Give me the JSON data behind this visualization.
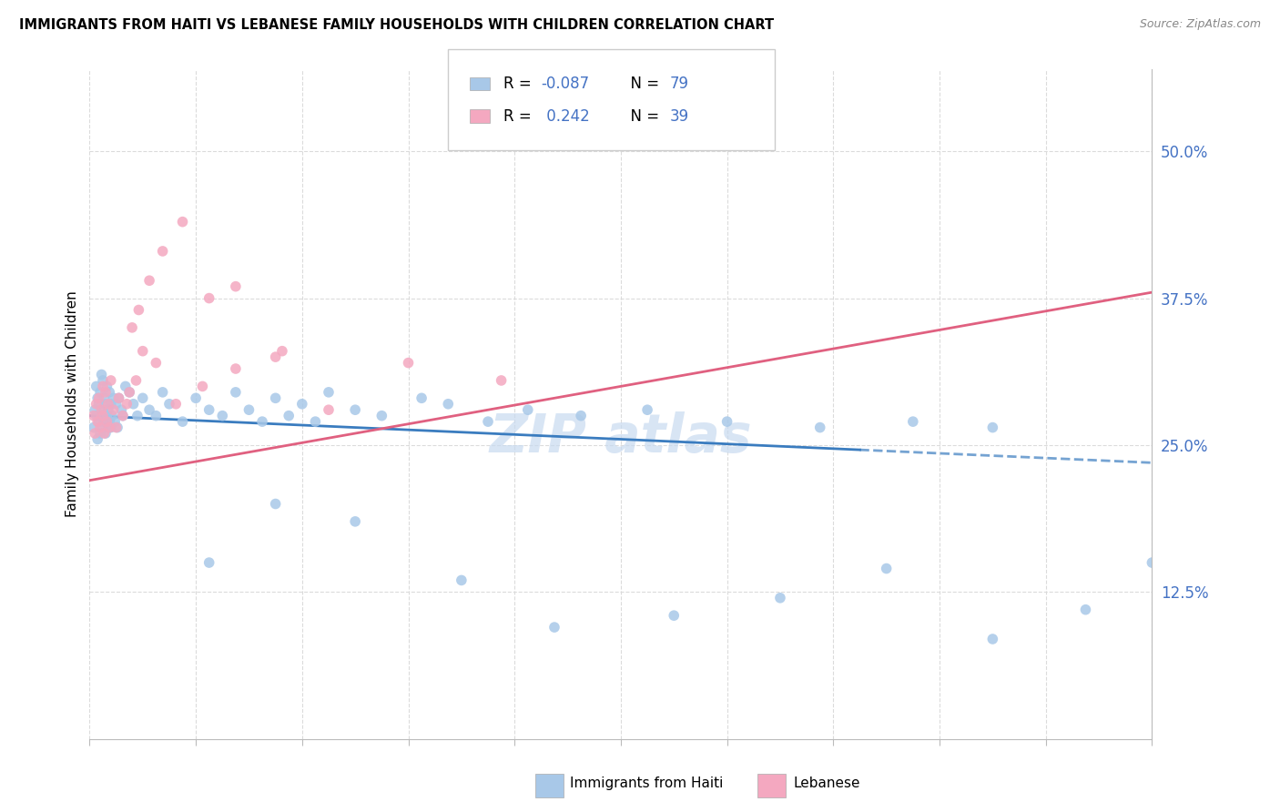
{
  "title": "IMMIGRANTS FROM HAITI VS LEBANESE FAMILY HOUSEHOLDS WITH CHILDREN CORRELATION CHART",
  "source": "Source: ZipAtlas.com",
  "ylabel": "Family Households with Children",
  "xmin": 0.0,
  "xmax": 80.0,
  "ymin": 0.0,
  "ymax": 57.0,
  "yticks": [
    12.5,
    25.0,
    37.5,
    50.0
  ],
  "ytick_labels": [
    "12.5%",
    "25.0%",
    "37.5%",
    "50.0%"
  ],
  "legend_R1": "-0.087",
  "legend_N1": "79",
  "legend_R2": "0.242",
  "legend_N2": "39",
  "color_haiti": "#a8c8e8",
  "color_lebanese": "#f4a8c0",
  "color_haiti_line": "#3a7cbf",
  "color_lebanese_line": "#e06080",
  "color_text_blue": "#4472c4",
  "color_grid": "#d8d8d8",
  "haiti_trend_y0": 27.5,
  "haiti_trend_y1": 23.5,
  "haiti_dash_start": 58.0,
  "leb_trend_y0": 22.0,
  "leb_trend_y1": 38.0,
  "haiti_x": [
    0.3,
    0.4,
    0.5,
    0.5,
    0.6,
    0.6,
    0.7,
    0.7,
    0.8,
    0.8,
    0.9,
    0.9,
    1.0,
    1.0,
    1.0,
    1.1,
    1.1,
    1.2,
    1.2,
    1.3,
    1.3,
    1.4,
    1.4,
    1.5,
    1.5,
    1.6,
    1.6,
    1.7,
    1.8,
    1.9,
    2.0,
    2.1,
    2.2,
    2.4,
    2.5,
    2.7,
    3.0,
    3.3,
    3.6,
    4.0,
    4.5,
    5.0,
    5.5,
    6.0,
    7.0,
    8.0,
    9.0,
    10.0,
    11.0,
    12.0,
    13.0,
    14.0,
    15.0,
    16.0,
    17.0,
    18.0,
    20.0,
    22.0,
    25.0,
    27.0,
    30.0,
    33.0,
    37.0,
    42.0,
    48.0,
    55.0,
    62.0,
    68.0,
    9.0,
    14.0,
    20.0,
    28.0,
    35.0,
    44.0,
    52.0,
    60.0,
    68.0,
    75.0,
    80.0
  ],
  "haiti_y": [
    26.5,
    28.0,
    27.5,
    30.0,
    25.5,
    29.0,
    27.0,
    28.5,
    26.0,
    29.5,
    27.5,
    31.0,
    26.5,
    28.0,
    30.5,
    27.0,
    29.0,
    26.0,
    28.5,
    27.5,
    30.0,
    26.5,
    28.0,
    27.0,
    29.5,
    26.5,
    28.5,
    27.5,
    29.0,
    27.0,
    28.5,
    26.5,
    29.0,
    28.0,
    27.5,
    30.0,
    29.5,
    28.5,
    27.5,
    29.0,
    28.0,
    27.5,
    29.5,
    28.5,
    27.0,
    29.0,
    28.0,
    27.5,
    29.5,
    28.0,
    27.0,
    29.0,
    27.5,
    28.5,
    27.0,
    29.5,
    28.0,
    27.5,
    29.0,
    28.5,
    27.0,
    28.0,
    27.5,
    28.0,
    27.0,
    26.5,
    27.0,
    26.5,
    15.0,
    20.0,
    18.5,
    13.5,
    9.5,
    10.5,
    12.0,
    14.5,
    8.5,
    11.0,
    15.0
  ],
  "leb_x": [
    0.3,
    0.4,
    0.5,
    0.6,
    0.7,
    0.8,
    0.9,
    1.0,
    1.0,
    1.1,
    1.2,
    1.3,
    1.4,
    1.5,
    1.6,
    1.8,
    2.0,
    2.2,
    2.5,
    2.8,
    3.2,
    3.7,
    4.5,
    5.5,
    7.0,
    9.0,
    11.0,
    14.0,
    3.0,
    3.5,
    4.0,
    5.0,
    6.5,
    8.5,
    11.0,
    14.5,
    18.0,
    24.0,
    31.0
  ],
  "leb_y": [
    27.5,
    26.0,
    28.5,
    27.0,
    29.0,
    26.5,
    28.0,
    27.5,
    30.0,
    26.0,
    29.5,
    27.0,
    28.5,
    26.5,
    30.5,
    28.0,
    26.5,
    29.0,
    27.5,
    28.5,
    35.0,
    36.5,
    39.0,
    41.5,
    44.0,
    37.5,
    38.5,
    32.5,
    29.5,
    30.5,
    33.0,
    32.0,
    28.5,
    30.0,
    31.5,
    33.0,
    28.0,
    32.0,
    30.5
  ]
}
